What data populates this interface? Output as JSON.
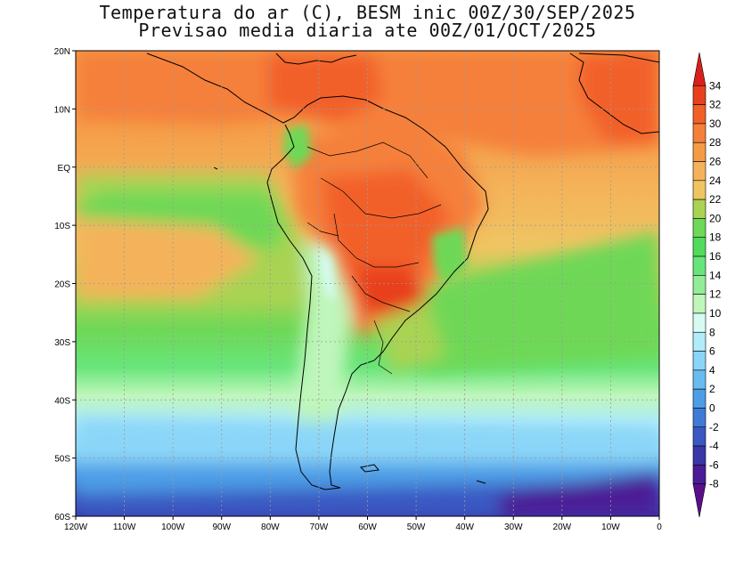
{
  "title": {
    "line1": "Temperatura do ar (C), BESM inic 00Z/30/SEP/2025",
    "line2": "Previsao media diaria ate 00Z/01/OCT/2025"
  },
  "map": {
    "lon_range": [
      -120,
      0
    ],
    "lat_range": [
      -60,
      20
    ],
    "grid": true,
    "lat_ticks": [
      {
        "v": 20,
        "label": "20N"
      },
      {
        "v": 10,
        "label": "10N"
      },
      {
        "v": 0,
        "label": "EQ"
      },
      {
        "v": -10,
        "label": "10S"
      },
      {
        "v": -20,
        "label": "20S"
      },
      {
        "v": -30,
        "label": "30S"
      },
      {
        "v": -40,
        "label": "40S"
      },
      {
        "v": -50,
        "label": "50S"
      },
      {
        "v": -60,
        "label": "60S"
      }
    ],
    "lon_ticks": [
      {
        "v": -120,
        "label": "120W"
      },
      {
        "v": -110,
        "label": "110W"
      },
      {
        "v": -100,
        "label": "100W"
      },
      {
        "v": -90,
        "label": "90W"
      },
      {
        "v": -80,
        "label": "80W"
      },
      {
        "v": -70,
        "label": "70W"
      },
      {
        "v": -60,
        "label": "60W"
      },
      {
        "v": -50,
        "label": "50W"
      },
      {
        "v": -40,
        "label": "40W"
      },
      {
        "v": -30,
        "label": "30W"
      },
      {
        "v": -20,
        "label": "20W"
      },
      {
        "v": -10,
        "label": "10W"
      },
      {
        "v": 0,
        "label": "0"
      }
    ]
  },
  "colorbar": {
    "labels": [
      "34",
      "32",
      "30",
      "28",
      "26",
      "24",
      "22",
      "20",
      "18",
      "16",
      "14",
      "12",
      "10",
      "8",
      "6",
      "4",
      "2",
      "0",
      "-2",
      "-4",
      "-6",
      "-8"
    ],
    "colors": [
      "#d9201c",
      "#e8401f",
      "#f2602a",
      "#f5803a",
      "#f49b45",
      "#f4b35a",
      "#efc562",
      "#a9d352",
      "#6ed857",
      "#53dc5c",
      "#68e57a",
      "#93ed98",
      "#bff6bb",
      "#d6fbf2",
      "#b0ecfa",
      "#8bd6f8",
      "#69bcf0",
      "#4e9ee6",
      "#3f7bd6",
      "#3a58c2",
      "#3a37a8",
      "#4b1c96",
      "#5a0f8a"
    ]
  }
}
